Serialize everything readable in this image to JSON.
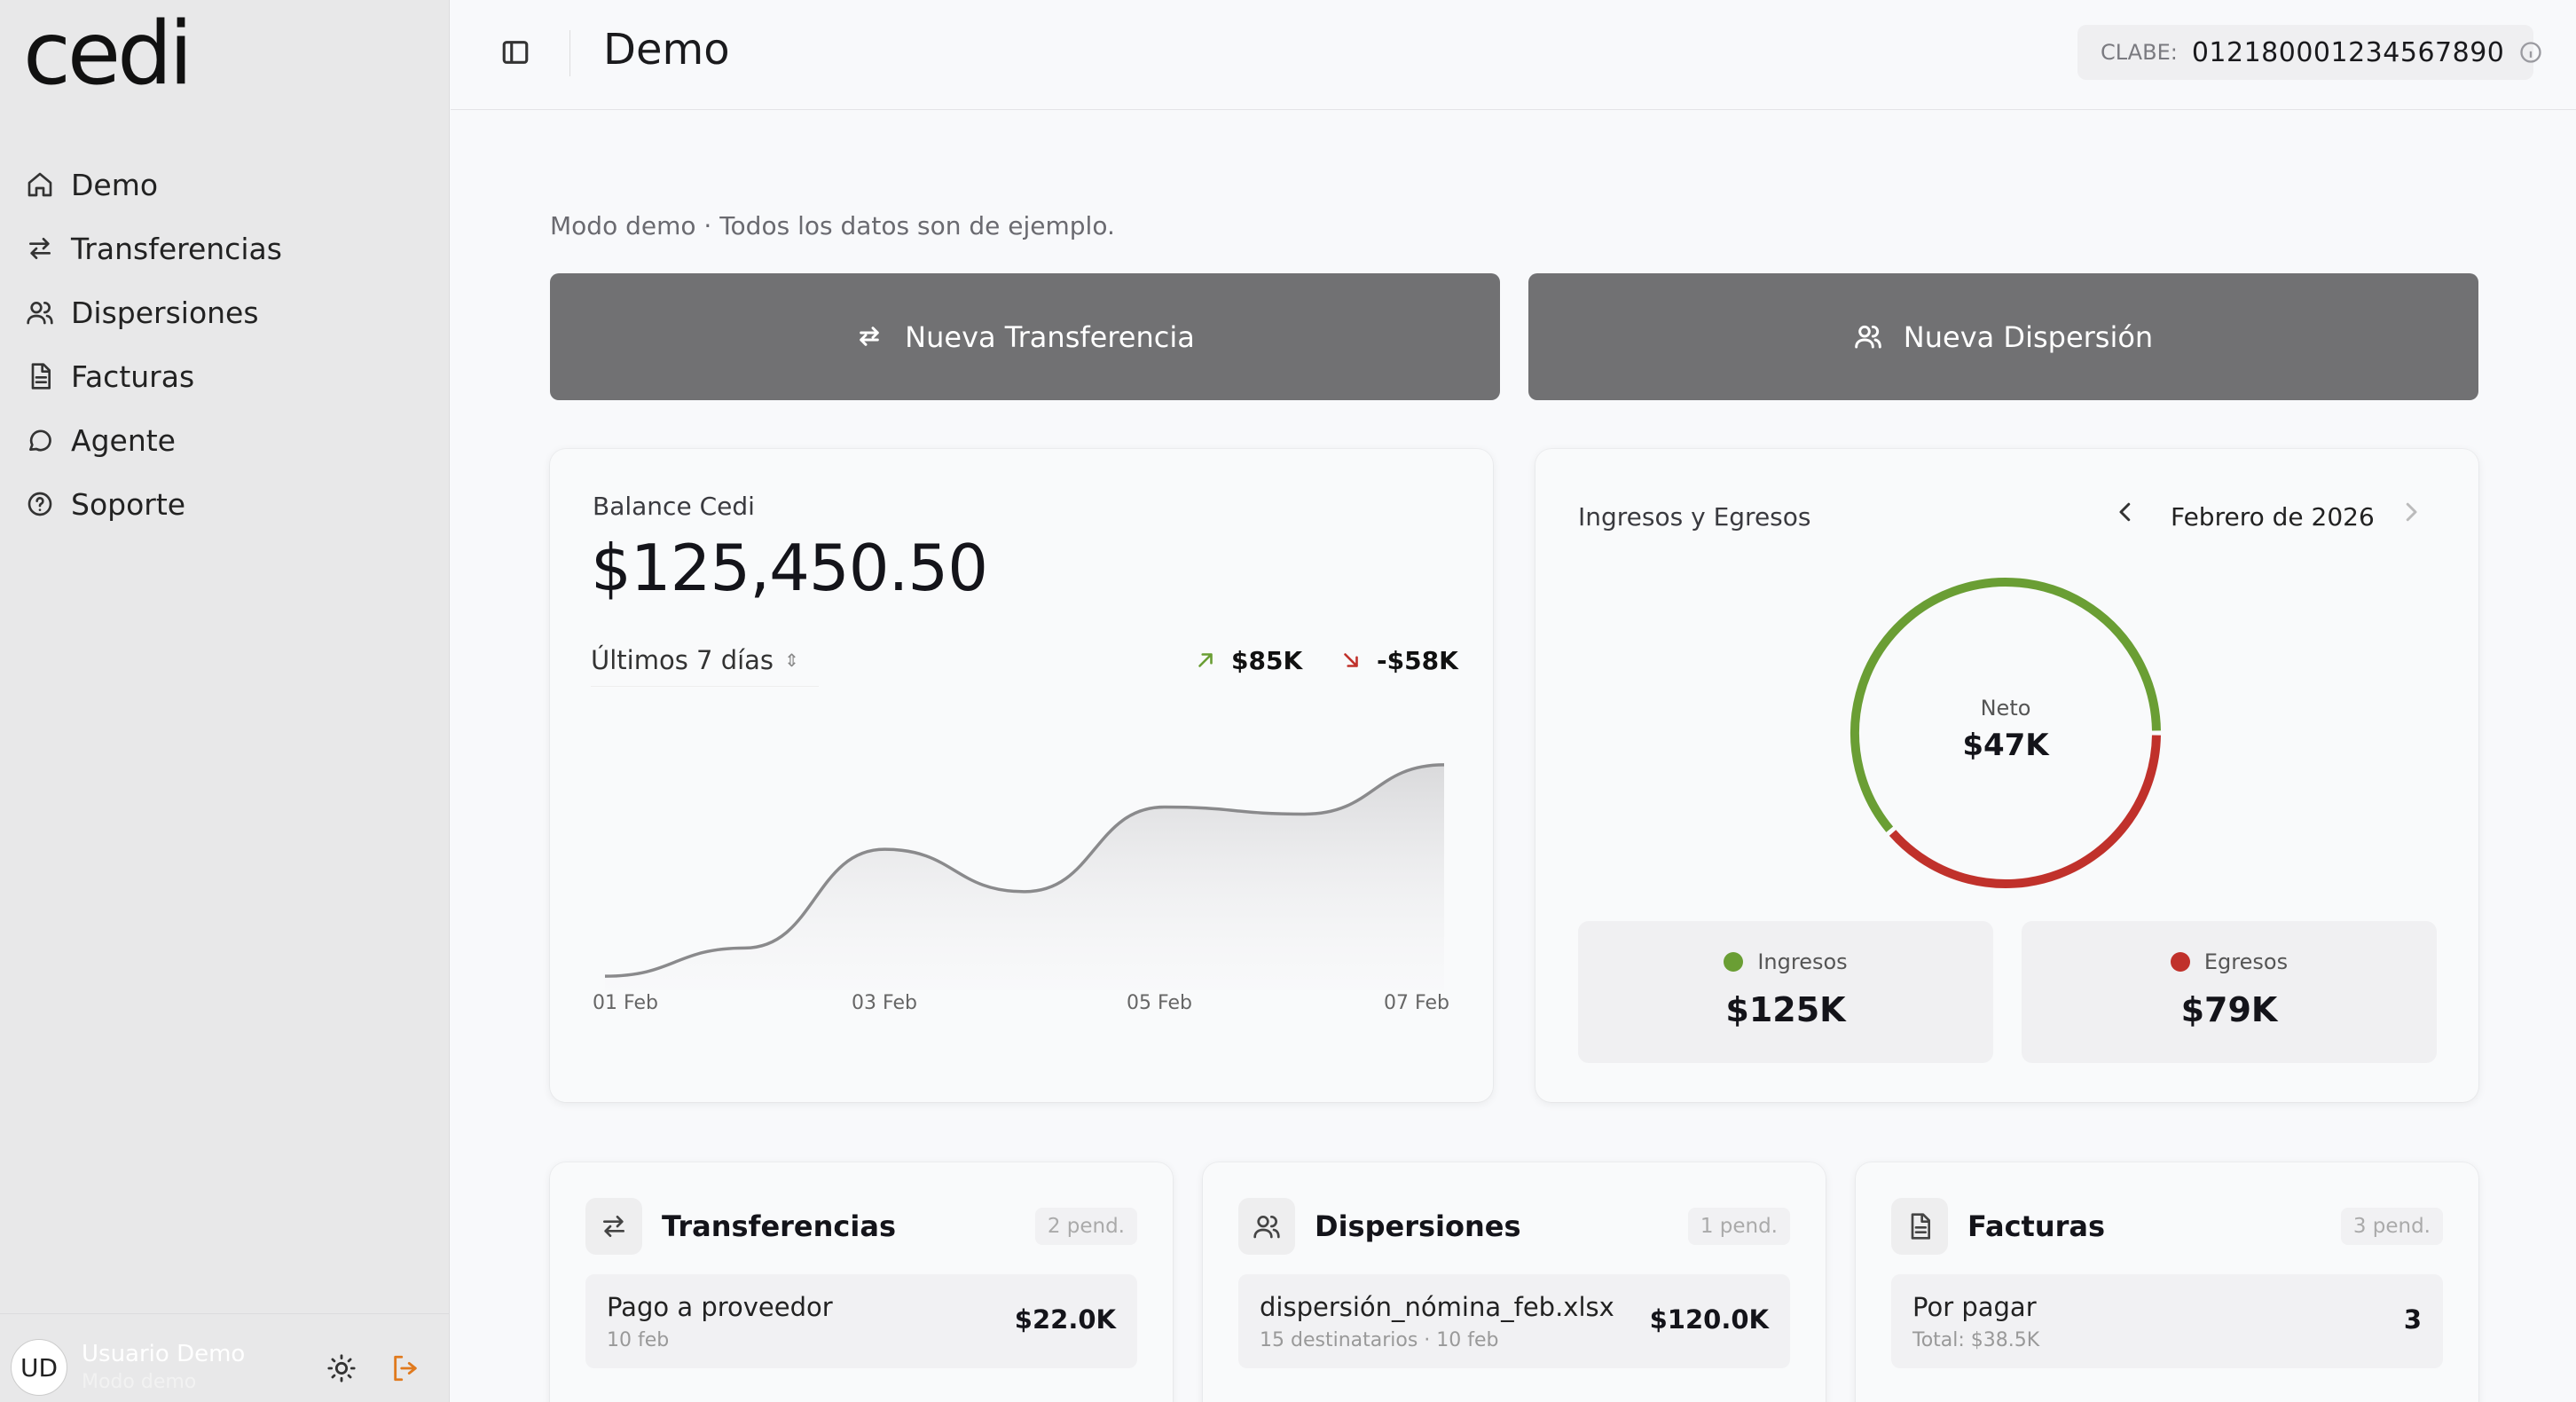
{
  "app": {
    "logo": "cedi"
  },
  "sidebar": {
    "items": [
      {
        "label": "Demo",
        "icon": "home-icon"
      },
      {
        "label": "Transferencias",
        "icon": "arrows-icon"
      },
      {
        "label": "Dispersiones",
        "icon": "users-icon"
      },
      {
        "label": "Facturas",
        "icon": "document-icon"
      },
      {
        "label": "Agente",
        "icon": "chat-icon"
      },
      {
        "label": "Soporte",
        "icon": "help-icon"
      }
    ],
    "user": {
      "initials": "UD",
      "name": "Usuario Demo",
      "subtitle": "Modo demo"
    }
  },
  "header": {
    "title": "Demo",
    "clabe_label": "CLABE:",
    "clabe_value": "012180001234567890"
  },
  "main": {
    "demo_note": "Modo demo · Todos los datos son de ejemplo.",
    "actions": {
      "transfer": "Nueva Transferencia",
      "dispersion": "Nueva Dispersión"
    },
    "balance": {
      "label": "Balance Cedi",
      "amount": "$125,450.50",
      "period": "Últimos 7 días",
      "income": "$85K",
      "expense": "-$58K"
    },
    "flows": {
      "title": "Ingresos y Egresos",
      "month": "Febrero de 2026",
      "net_label": "Neto",
      "net_value": "$47K",
      "income_label": "Ingresos",
      "income_value": "$125K",
      "expense_label": "Egresos",
      "expense_value": "$79K"
    },
    "summaries": {
      "transfers": {
        "title": "Transferencias",
        "badge": "2 pend.",
        "item_title": "Pago a proveedor",
        "item_sub": "10 feb",
        "item_value": "$22.0K"
      },
      "dispersions": {
        "title": "Dispersiones",
        "badge": "1 pend.",
        "item_title": "dispersión_nómina_feb.xlsx",
        "item_sub": "15 destinatarios · 10 feb",
        "item_value": "$120.0K"
      },
      "invoices": {
        "title": "Facturas",
        "badge": "3 pend.",
        "item_title": "Por pagar",
        "item_sub": "Total: $38.5K",
        "item_value": "3"
      }
    }
  },
  "colors": {
    "income": "#6a9e34",
    "expense": "#c0312b",
    "button": "#717173",
    "sidebar": "#e8e8e9"
  },
  "chart_data": [
    {
      "type": "area",
      "x": [
        "01 Feb",
        "02 Feb",
        "03 Feb",
        "04 Feb",
        "05 Feb",
        "06 Feb",
        "07 Feb"
      ],
      "tick_labels": [
        "01 Feb",
        "03 Feb",
        "05 Feb",
        "07 Feb"
      ],
      "series": [
        {
          "values": [
            100,
            104,
            118,
            112,
            124,
            123,
            130
          ]
        }
      ],
      "ylim": [
        98,
        132
      ],
      "grid": false
    },
    {
      "type": "pie",
      "categories": [
        "Ingresos",
        "Egresos"
      ],
      "values": [
        125,
        79
      ],
      "colors": [
        "#6a9e34",
        "#c0312b"
      ]
    }
  ]
}
